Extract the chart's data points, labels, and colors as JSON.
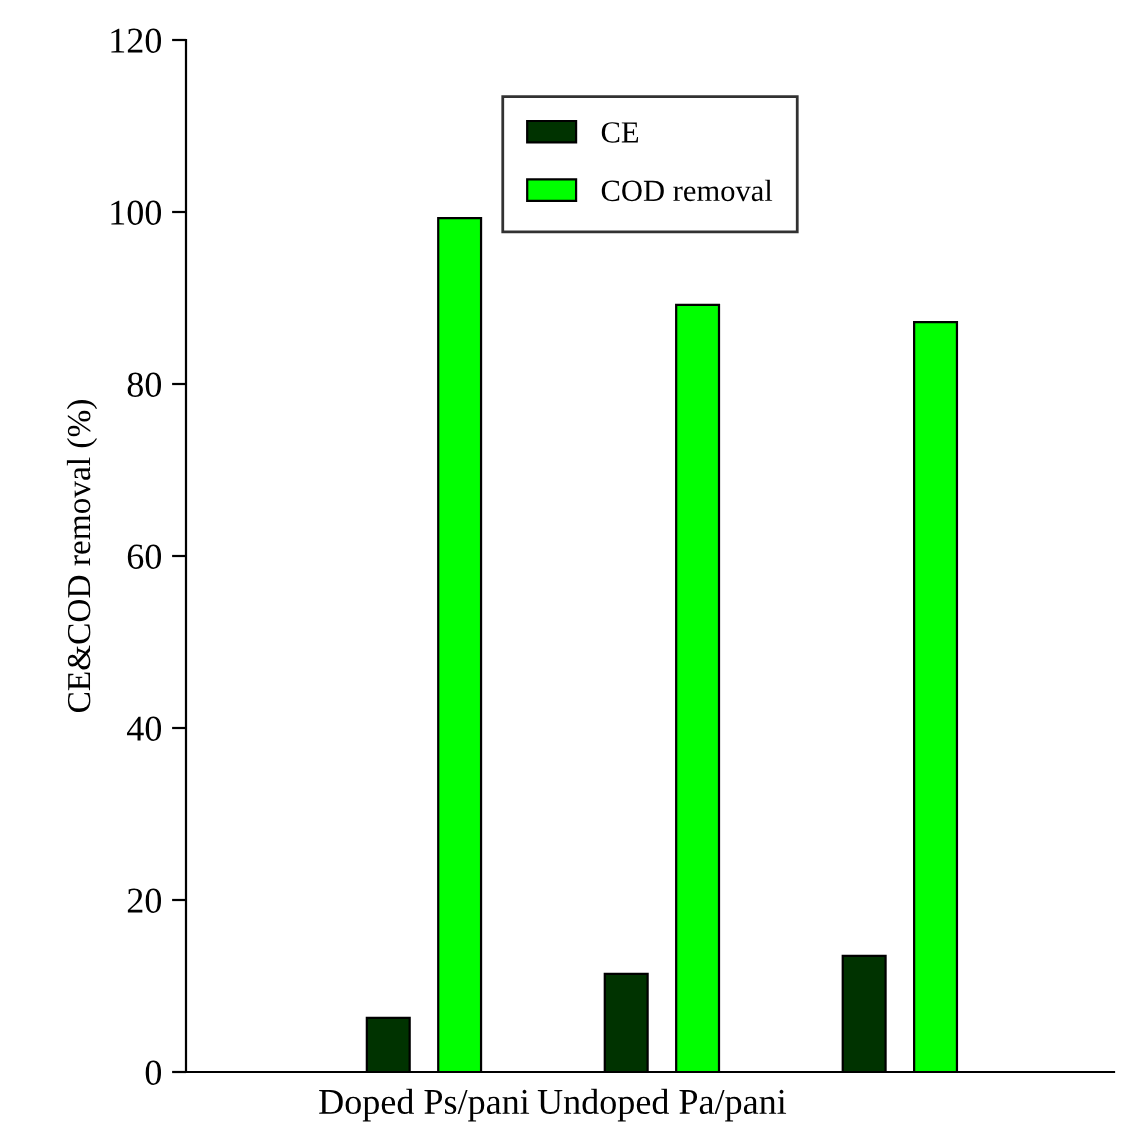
{
  "chart_data": {
    "type": "bar",
    "ylabel": "CE&COD removal (%)",
    "categories": [
      "Doped Ps/pani",
      "Undoped Pa/pani",
      null
    ],
    "series": [
      {
        "name": "CE",
        "color": "#003300",
        "values": [
          6.3,
          11.4,
          13.5
        ]
      },
      {
        "name": "COD removal",
        "color": "#00ff00",
        "values": [
          99.3,
          89.2,
          87.2
        ]
      }
    ],
    "ylim": [
      0,
      120
    ],
    "yticks": [
      0,
      20,
      40,
      60,
      80,
      100,
      120
    ],
    "grid": false,
    "legend": "top"
  }
}
